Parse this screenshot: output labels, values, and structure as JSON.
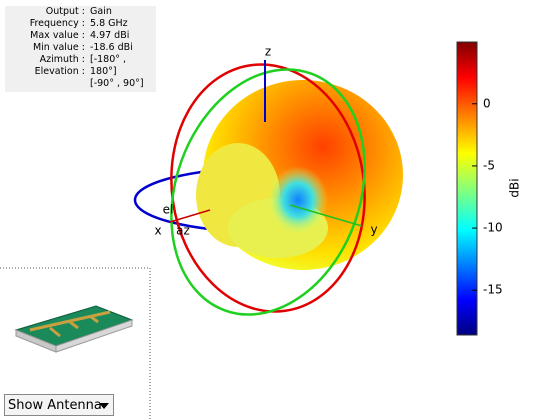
{
  "info_panel": {
    "labels": [
      "Output :",
      "Frequency :",
      "Max value :",
      "Min value :",
      "Azimuth :",
      "Elevation :"
    ],
    "values": [
      "Gain",
      "5.8 GHz",
      "4.97 dBi",
      "-18.6 dBi",
      "[-180° ,",
      "180°]",
      "[-90° , 90°]"
    ]
  },
  "axes": {
    "x": "x",
    "y": "y",
    "z": "z",
    "el": "el",
    "az": "az"
  },
  "colorbar": {
    "label": "dBi",
    "lim": [
      -18.6,
      4.97
    ],
    "ticks": [
      0,
      -5,
      -10,
      -15
    ]
  },
  "dropdown": {
    "label": "Show Antenna"
  }
}
